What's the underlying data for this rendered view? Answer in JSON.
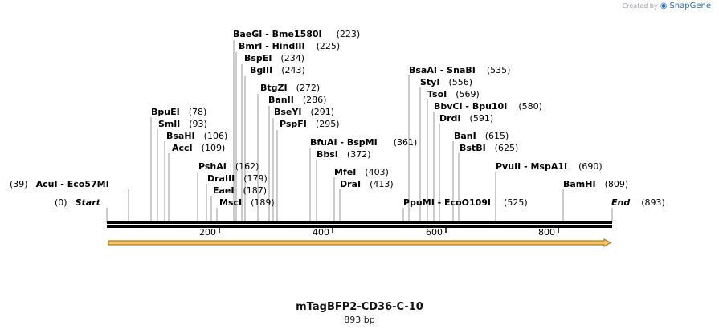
{
  "branding": {
    "created_by": "Created by",
    "product": "SnapGene"
  },
  "map": {
    "title": "mTagBFP2-CD36-C-10",
    "length_label": "893 bp",
    "total_bp": 893,
    "start_label": "Start",
    "start_pos": "(0)",
    "end_label": "End",
    "end_pos": "(893)"
  },
  "ruler": {
    "ticks": [
      "200",
      "400",
      "600",
      "800"
    ]
  },
  "sites": [
    {
      "text": "BaeGI  - Bme1580I",
      "pos": "(223)",
      "bp": 223
    },
    {
      "text": "BmrI  - HindIII",
      "pos": "(225)",
      "bp": 225
    },
    {
      "text": "BspEI",
      "pos": "(234)",
      "bp": 234
    },
    {
      "text": "BglII",
      "pos": "(243)",
      "bp": 243
    },
    {
      "text": "BtgZI",
      "pos": "(272)",
      "bp": 272
    },
    {
      "text": "BanII",
      "pos": "(286)",
      "bp": 286
    },
    {
      "text": "BseYI",
      "pos": "(291)",
      "bp": 291
    },
    {
      "text": "PspFI",
      "pos": "(295)",
      "bp": 295
    },
    {
      "text": "BpuEI",
      "pos": "(78)",
      "bp": 78
    },
    {
      "text": "SmlI",
      "pos": "(93)",
      "bp": 93
    },
    {
      "text": "BsaHI",
      "pos": "(106)",
      "bp": 106
    },
    {
      "text": "AccI",
      "pos": "(109)",
      "bp": 109
    },
    {
      "text": "PshAI",
      "pos": "(162)",
      "bp": 162
    },
    {
      "text": "DraIII",
      "pos": "(179)",
      "bp": 179
    },
    {
      "text": "EaeI",
      "pos": "(187)",
      "bp": 187
    },
    {
      "text": "MscI",
      "pos": "(189)",
      "bp": 189
    },
    {
      "text": "AcuI  - Eco57MI",
      "pos": "(39)",
      "bp": 39
    },
    {
      "text": "BfuAI  - BspMI",
      "pos": "(361)",
      "bp": 361
    },
    {
      "text": "BbsI",
      "pos": "(372)",
      "bp": 372
    },
    {
      "text": "MfeI",
      "pos": "(403)",
      "bp": 403
    },
    {
      "text": "DraI",
      "pos": "(413)",
      "bp": 413
    },
    {
      "text": "BsaAI  - SnaBI",
      "pos": "(535)",
      "bp": 535
    },
    {
      "text": "StyI",
      "pos": "(556)",
      "bp": 556
    },
    {
      "text": "TsoI",
      "pos": "(569)",
      "bp": 569
    },
    {
      "text": "BbvCI  - Bpu10I",
      "pos": "(580)",
      "bp": 580
    },
    {
      "text": "DrdI",
      "pos": "(591)",
      "bp": 591
    },
    {
      "text": "BanI",
      "pos": "(615)",
      "bp": 615
    },
    {
      "text": "BstBI",
      "pos": "(625)",
      "bp": 625
    },
    {
      "text": "PpuMI  - EcoO109I",
      "pos": "(525)",
      "bp": 525
    },
    {
      "text": "PvuII  - MspA1I",
      "pos": "(690)",
      "bp": 690
    },
    {
      "text": "BamHI",
      "pos": "(809)",
      "bp": 809
    }
  ],
  "colors": {
    "feature_fill": "#f6c56b",
    "feature_stroke": "#b07a16",
    "backbone": "#000000"
  }
}
